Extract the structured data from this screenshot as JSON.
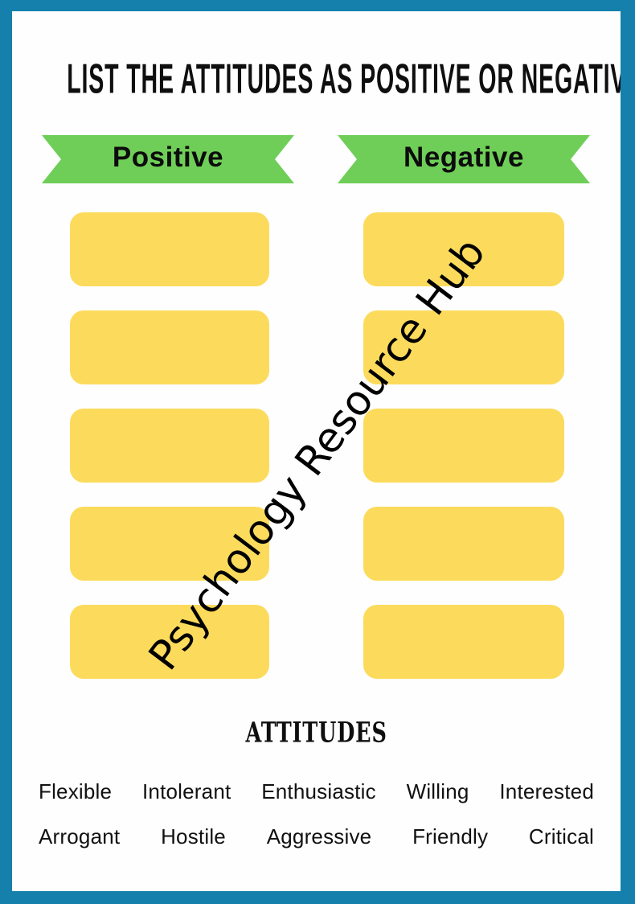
{
  "page": {
    "title": "LIST THE ATTITUDES AS POSITIVE OR NEGATIVE",
    "watermark": "Psychology Resource Hub"
  },
  "columns": {
    "positive": {
      "label": "Positive",
      "slots": 5
    },
    "negative": {
      "label": "Negative",
      "slots": 5
    }
  },
  "word_bank": {
    "title": "ATTITUDES",
    "rows": [
      [
        "Flexible",
        "Intolerant",
        "Enthusiastic",
        "Willing",
        "Interested"
      ],
      [
        "Arrogant",
        "Hostile",
        "Aggressive",
        "Friendly",
        "Critical"
      ]
    ]
  },
  "colors": {
    "border_teal": "#1580AC",
    "banner_green": "#6FCE58",
    "slot_yellow": "#FCDB5C",
    "text_ink": "#0F0F0F"
  }
}
